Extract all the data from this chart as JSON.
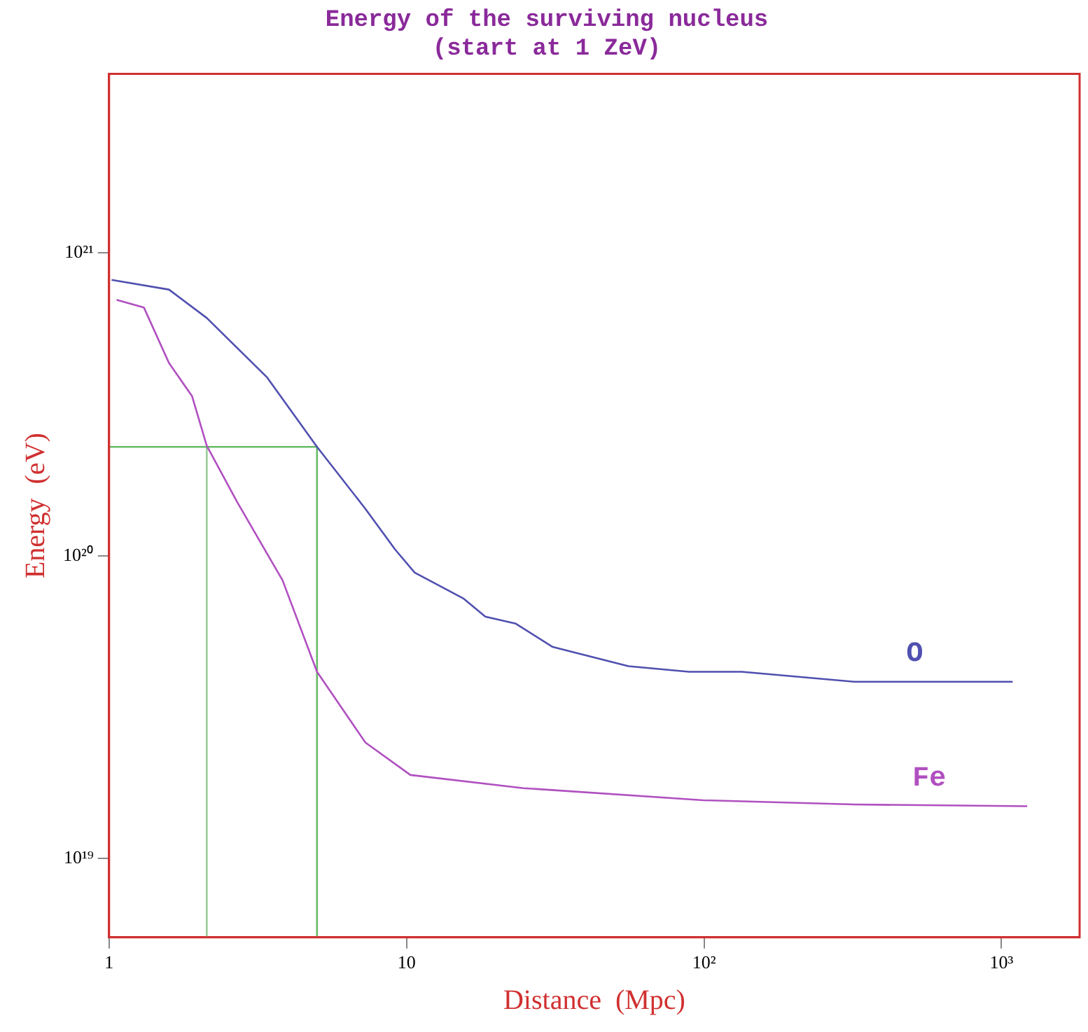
{
  "chart_data": {
    "type": "line",
    "title": [
      "Energy of the surviving nucleus",
      "(start at 1 ZeV)"
    ],
    "xlabel": "Distance  (Mpc)",
    "ylabel": "Energy  (eV)",
    "log": "xy",
    "grid": false,
    "legend": false,
    "marker": "none",
    "line_style": "solid",
    "xlim": [
      1,
      1830
    ],
    "ylim": [
      5.5e+18,
      3.9e+21
    ],
    "xticks": [
      {
        "value": 1,
        "label": "1"
      },
      {
        "value": 10,
        "label": "10"
      },
      {
        "value": 100,
        "label": "10²"
      },
      {
        "value": 1000,
        "label": "10³"
      }
    ],
    "yticks": [
      {
        "value": 1e+19,
        "label": "10¹⁹"
      },
      {
        "value": 1e+20,
        "label": "10²⁰"
      },
      {
        "value": 1e+21,
        "label": "10²¹"
      }
    ],
    "series": [
      {
        "name": "O",
        "color": "#5050b0",
        "x": [
          1.02,
          1.59,
          2.13,
          3.4,
          5.0,
          7.27,
          9.15,
          10.65,
          15.5,
          18.4,
          23.3,
          31,
          55.7,
          89,
          134,
          320,
          1090
        ],
        "values": [
          8.15e+20,
          7.57e+20,
          6.1e+20,
          3.88e+20,
          2.29e+20,
          1.43e+20,
          1.05e+20,
          8.8e+19,
          7.24e+19,
          6.3e+19,
          5.97e+19,
          5e+19,
          4.32e+19,
          4.14e+19,
          4.14e+19,
          3.84e+19,
          3.84e+19
        ]
      },
      {
        "name": "Fe",
        "color": "#b050c0",
        "x": [
          1.06,
          1.31,
          1.59,
          1.9,
          2.13,
          2.69,
          3.83,
          5.0,
          7.27,
          10.3,
          24.7,
          99.5,
          320,
          1220
        ],
        "values": [
          7e+20,
          6.6e+20,
          4.33e+20,
          3.37e+20,
          2.31e+20,
          1.51e+20,
          8.3e+19,
          4.14e+19,
          2.42e+19,
          1.89e+19,
          1.71e+19,
          1.56e+19,
          1.51e+19,
          1.49e+19
        ]
      },
      {
        "color": "#66bb66",
        "x": [
          1,
          5.0,
          5.0
        ],
        "values": [
          2.29e+20,
          2.29e+20,
          5.5e+18
        ]
      },
      {
        "color": "#99cc99",
        "x": [
          2.13,
          2.13
        ],
        "values": [
          2.29e+20,
          5.5e+18
        ]
      }
    ]
  }
}
